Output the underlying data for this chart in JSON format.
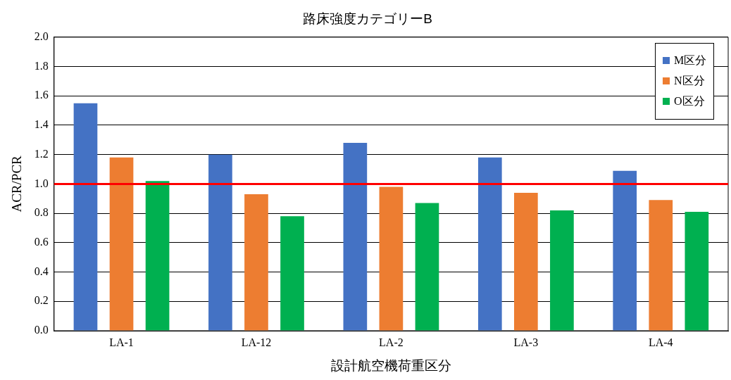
{
  "chart_data": {
    "type": "bar",
    "title": "路床強度カテゴリーB",
    "xlabel": "設計航空機荷重区分",
    "ylabel": "ACR/PCR",
    "categories": [
      "LA-1",
      "LA-12",
      "LA-2",
      "LA-3",
      "LA-4"
    ],
    "series": [
      {
        "name": "M区分",
        "color": "#4472c4",
        "values": [
          1.55,
          1.2,
          1.28,
          1.18,
          1.09
        ]
      },
      {
        "name": "N区分",
        "color": "#ed7d31",
        "values": [
          1.18,
          0.93,
          0.98,
          0.94,
          0.89
        ]
      },
      {
        "name": "O区分",
        "color": "#00b050",
        "values": [
          1.02,
          0.78,
          0.87,
          0.82,
          0.81
        ]
      }
    ],
    "ylim": [
      0,
      2
    ],
    "yticks": [
      {
        "value": 0,
        "label": "0.0"
      },
      {
        "value": 0.2,
        "label": "0.2"
      },
      {
        "value": 0.4,
        "label": "0.4"
      },
      {
        "value": 0.6,
        "label": "0.6"
      },
      {
        "value": 0.8,
        "label": "0.8"
      },
      {
        "value": 1,
        "label": "1.0"
      },
      {
        "value": 1.2,
        "label": "1.2"
      },
      {
        "value": 1.4,
        "label": "1.4"
      },
      {
        "value": 1.6,
        "label": "1.6"
      },
      {
        "value": 1.8,
        "label": "1.8"
      },
      {
        "value": 2,
        "label": "2.0"
      }
    ],
    "grid": "y",
    "legend": "top right",
    "ref_lines": [
      {
        "axis": "y",
        "value": 1,
        "color": "#ff0000"
      }
    ]
  }
}
